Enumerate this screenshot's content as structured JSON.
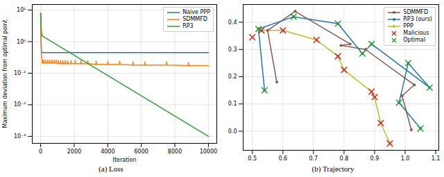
{
  "chart_data": [
    {
      "type": "line",
      "caption": "(a) Loss",
      "x_label": "Iteration",
      "y_label": "Maximum deviation from optimal point",
      "log": "y",
      "grid": true,
      "legend": "upper right",
      "xlim": [
        -500,
        10500
      ],
      "xticks": [
        0,
        2000,
        4000,
        6000,
        8000,
        10000
      ],
      "ylim": [
        0.0006,
        15
      ],
      "yticks": [
        {
          "value": 0.001,
          "label": "10⁻³"
        },
        {
          "value": 0.01,
          "label": "10⁻²"
        },
        {
          "value": 0.1,
          "label": "10⁻¹"
        },
        {
          "value": 1,
          "label": "10⁰"
        },
        {
          "value": 10,
          "label": "10¹"
        }
      ],
      "series": [
        {
          "name": "Naive PPP",
          "color": "#1f77b4",
          "marker": "none",
          "line_style": "solid",
          "x": [
            0,
            20,
            50,
            10000
          ],
          "values": [
            8,
            1.5,
            0.45,
            0.45
          ]
        },
        {
          "name": "SDMMFD",
          "color": "#ff7f0e",
          "marker": "none",
          "line_style": "solid",
          "x": [
            0,
            20,
            50,
            100,
            150,
            151,
            190,
            280,
            281,
            320,
            410,
            411,
            450,
            540,
            541,
            580,
            670,
            671,
            710,
            800,
            801,
            840,
            930,
            931,
            970,
            1060,
            1061,
            1100,
            1190,
            1191,
            1230,
            1320,
            1321,
            1360,
            1450,
            1451,
            1490,
            1600,
            1601,
            1640,
            1800,
            1801,
            1840,
            2050,
            2051,
            2090,
            2400,
            2401,
            2440,
            2800,
            2801,
            2840,
            3300,
            3301,
            3340,
            4000,
            4001,
            4040,
            4700,
            4701,
            4740,
            5500,
            5501,
            5540,
            6200,
            6201,
            6240,
            7500,
            7501,
            7540,
            8800,
            8801,
            8840,
            10000
          ],
          "values": [
            8,
            1.2,
            0.35,
            0.21,
            0.21,
            0.26,
            0.21,
            0.21,
            0.26,
            0.21,
            0.21,
            0.26,
            0.21,
            0.21,
            0.26,
            0.21,
            0.21,
            0.26,
            0.21,
            0.21,
            0.26,
            0.21,
            0.21,
            0.26,
            0.21,
            0.2,
            0.25,
            0.2,
            0.2,
            0.25,
            0.2,
            0.2,
            0.25,
            0.2,
            0.2,
            0.25,
            0.2,
            0.2,
            0.25,
            0.2,
            0.2,
            0.25,
            0.2,
            0.2,
            0.25,
            0.2,
            0.2,
            0.25,
            0.2,
            0.2,
            0.25,
            0.2,
            0.19,
            0.24,
            0.19,
            0.19,
            0.24,
            0.19,
            0.19,
            0.24,
            0.19,
            0.18,
            0.23,
            0.18,
            0.18,
            0.23,
            0.18,
            0.18,
            0.23,
            0.18,
            0.175,
            0.22,
            0.175,
            0.175
          ]
        },
        {
          "name": "RP3",
          "color": "#2ca02c",
          "marker": "none",
          "line_style": "solid",
          "x": [
            0,
            20,
            60,
            100,
            10000
          ],
          "values": [
            8,
            3,
            1.8,
            1.5,
            0.001
          ]
        }
      ]
    },
    {
      "type": "line",
      "caption": "(b) Trajectory",
      "grid": true,
      "legend": "upper right",
      "xlim": [
        0.47,
        1.11
      ],
      "xticks": [
        0.5,
        0.6,
        0.7,
        0.8,
        0.9,
        {
          "value": 1,
          "label": "1.0"
        },
        1.1
      ],
      "ylim": [
        -0.07,
        0.465
      ],
      "yticks": [
        {
          "value": 0,
          "label": "0.0"
        },
        0.1,
        0.2,
        0.3,
        0.4
      ],
      "series": [
        {
          "name": "SDMMFD",
          "color": "#8c564b",
          "marker": "o",
          "line_style": "solid",
          "x": [
            0.58,
            0.55,
            0.64,
            0.82,
            0.79,
            0.87,
            1.03,
            0.99,
            1.02
          ],
          "values": [
            0.18,
            0.37,
            0.44,
            0.32,
            0.315,
            0.3,
            0.17,
            0.13,
            0.005
          ]
        },
        {
          "name": "RP3 (ours)",
          "color": "#1f77b4",
          "marker": "o",
          "line_style": "solid",
          "x": [
            0.54,
            0.52,
            0.635,
            0.78,
            0.86,
            0.89,
            1.08,
            1.01,
            0.98,
            1.05
          ],
          "values": [
            0.15,
            0.375,
            0.42,
            0.395,
            0.285,
            0.32,
            0.16,
            0.25,
            0.105,
            0.01
          ]
        },
        {
          "name": "PPP",
          "color": "#bcbd22",
          "marker": "o",
          "line_style": "solid",
          "x": [
            0.52,
            0.53,
            0.6,
            0.71,
            0.78,
            0.8,
            0.89,
            0.9,
            0.92,
            0.95
          ],
          "values": [
            0.375,
            0.37,
            0.37,
            0.335,
            0.275,
            0.225,
            0.145,
            0.125,
            0.03,
            -0.045
          ]
        },
        {
          "name": "Malicious",
          "color": "#d62728",
          "marker": "x",
          "line_style": "none",
          "x": [
            0.5,
            0.53,
            0.6,
            0.71,
            0.78,
            0.8,
            0.89,
            0.9,
            0.92,
            0.95
          ],
          "values": [
            0.345,
            0.37,
            0.37,
            0.335,
            0.275,
            0.225,
            0.145,
            0.125,
            0.03,
            -0.045
          ]
        },
        {
          "name": "Optimal",
          "color": "#2ca02c",
          "marker": "x",
          "line_style": "none",
          "x": [
            0.52,
            0.54,
            0.635,
            0.78,
            0.86,
            0.89,
            1.01,
            0.98,
            1.08,
            1.05
          ],
          "values": [
            0.375,
            0.15,
            0.42,
            0.395,
            0.285,
            0.32,
            0.25,
            0.105,
            0.16,
            0.01
          ]
        }
      ]
    }
  ]
}
